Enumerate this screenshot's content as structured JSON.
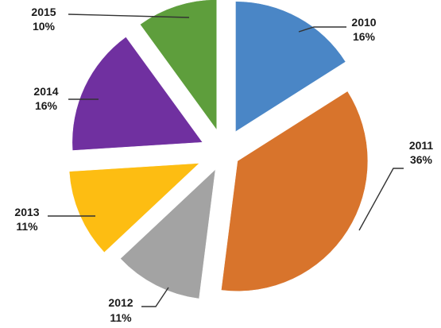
{
  "chart_data": {
    "type": "pie",
    "title": "",
    "slices": [
      {
        "label": "2010",
        "value": 16,
        "value_text": "16%",
        "color": "#4a86c6"
      },
      {
        "label": "2011",
        "value": 36,
        "value_text": "36%",
        "color": "#d8742c"
      },
      {
        "label": "2012",
        "value": 11,
        "value_text": "11%",
        "color": "#a3a3a3"
      },
      {
        "label": "2013",
        "value": 11,
        "value_text": "11%",
        "color": "#fdbd12"
      },
      {
        "label": "2014",
        "value": 16,
        "value_text": "16%",
        "color": "#7030a0"
      },
      {
        "label": "2015",
        "value": 10,
        "value_text": "10%",
        "color": "#5e9e3c"
      }
    ],
    "exploded": true,
    "legend": "none",
    "labels_outside_with_leaders": true
  }
}
